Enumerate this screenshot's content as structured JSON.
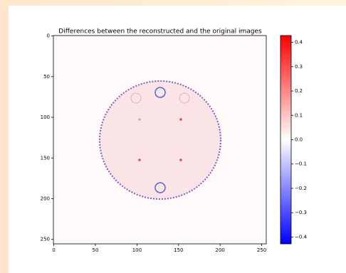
{
  "chart_data": {
    "type": "image",
    "title": "Differences between the reconstructed and the original images",
    "xlim": [
      -0.5,
      255.5
    ],
    "xticks": [
      0,
      50,
      100,
      150,
      200,
      250
    ],
    "ylim": [
      255.5,
      -0.5
    ],
    "yticks": [
      0,
      50,
      100,
      150,
      200,
      250
    ],
    "colorbar": {
      "lim": [
        -0.428,
        0.428
      ],
      "ticks": [
        0.4,
        0.3,
        0.2,
        0.1,
        {
          "value": 0,
          "label": "0.0"
        },
        {
          "value": -0.1,
          "label": "−0.1"
        },
        {
          "value": -0.2,
          "label": "−0.2"
        },
        {
          "value": -0.3,
          "label": "−0.3"
        },
        {
          "value": -0.4,
          "label": "−0.4"
        }
      ],
      "colors": [
        "#0000ff",
        "#ffffff",
        "#ff0000"
      ]
    }
  }
}
